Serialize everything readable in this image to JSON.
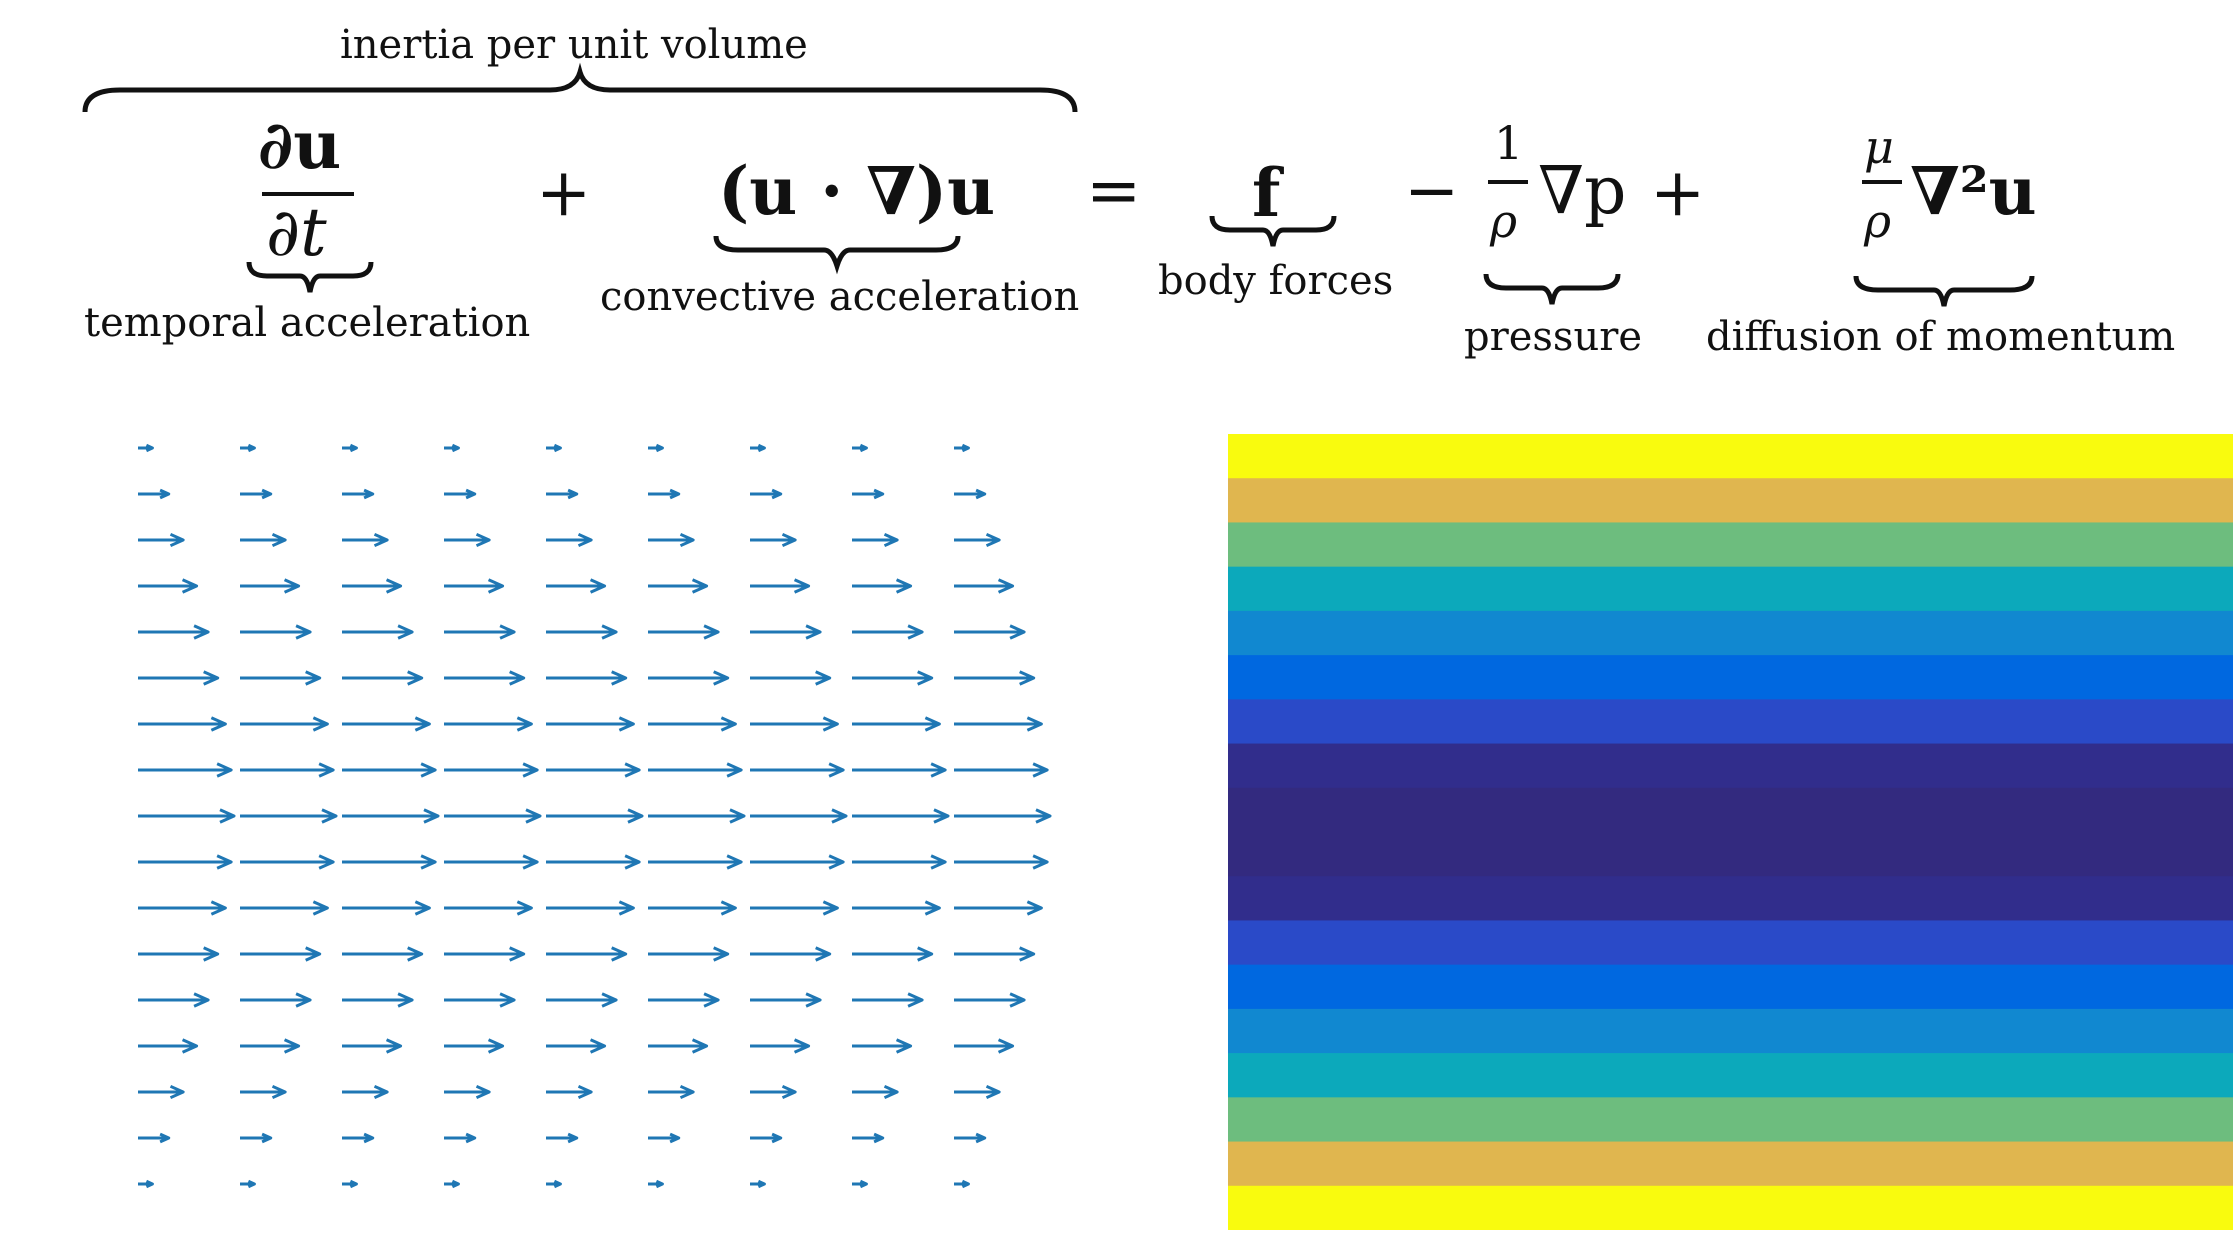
{
  "equation": {
    "top_label": "inertia per unit volume",
    "term_temporal": {
      "numerator": "∂u",
      "denominator": "∂t",
      "label": "temporal acceleration"
    },
    "plus1": "+",
    "term_convective": {
      "expression": "(u · ∇)u",
      "label": "convective acceleration"
    },
    "equals": "=",
    "term_body": {
      "expression": "f",
      "label": "body forces"
    },
    "minus": "−",
    "term_pressure": {
      "numerator": "1",
      "denominator": "ρ",
      "tail": "∇p",
      "label": "pressure"
    },
    "plus2": "+",
    "term_diffusion": {
      "numerator": "μ",
      "denominator": "ρ",
      "tail": "∇²u",
      "label": "diffusion of momentum"
    }
  },
  "quiver": {
    "arrow_color": "#1f77b4",
    "columns": 9,
    "rows": 17,
    "row_magnitudes": [
      0.15,
      0.32,
      0.47,
      0.61,
      0.73,
      0.83,
      0.91,
      0.97,
      1.0,
      0.97,
      0.91,
      0.83,
      0.73,
      0.61,
      0.47,
      0.32,
      0.15
    ]
  },
  "heatmap": {
    "band_colors": [
      "#f9fb0e",
      "#e0b64f",
      "#6dbd7e",
      "#0ca9bb",
      "#1188d0",
      "#0068e0",
      "#2a4ac8",
      "#312d8c",
      "#332a7f",
      "#332a7f",
      "#312d8c",
      "#2a4ac8",
      "#0068e0",
      "#1188d0",
      "#0ca9bb",
      "#6dbd7e",
      "#e0b64f",
      "#f9fb0e"
    ]
  }
}
